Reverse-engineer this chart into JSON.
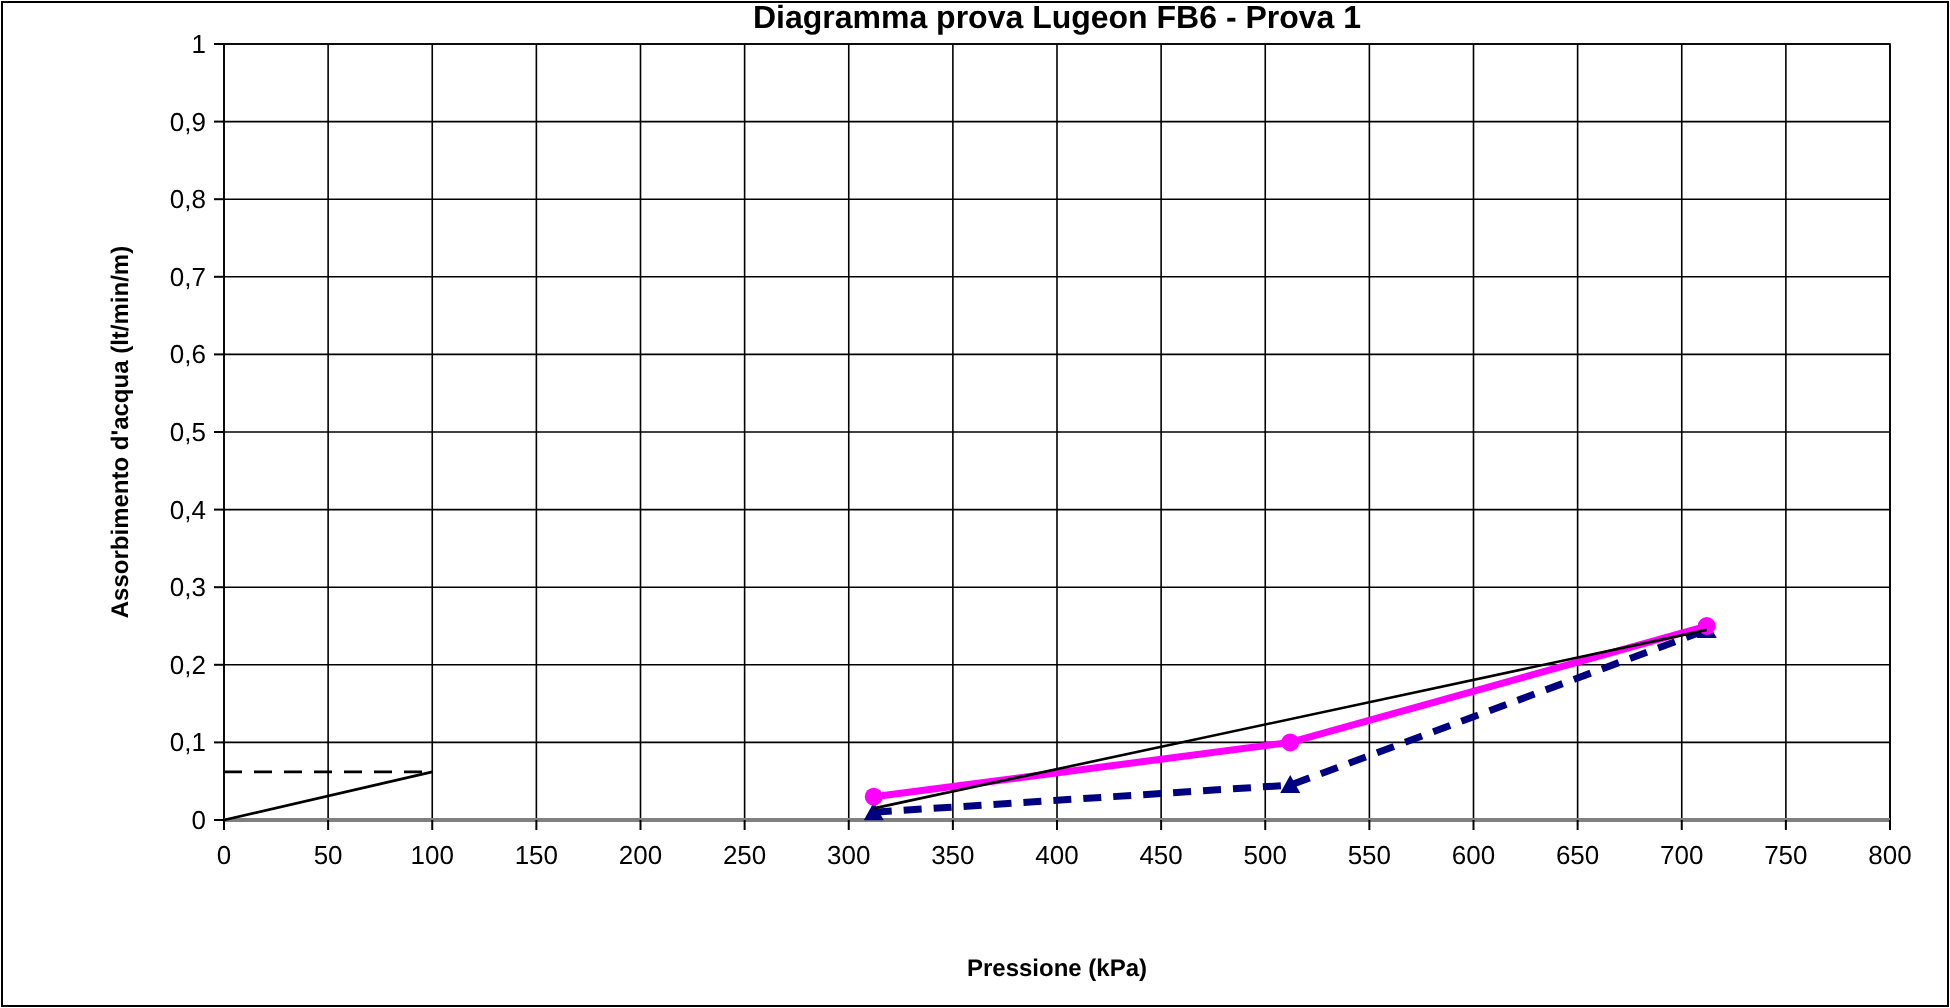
{
  "chart_data": {
    "type": "line",
    "title": "Diagramma prova Lugeon FB6 - Prova 1",
    "xlabel": "Pressione (kPa)",
    "ylabel": "Assorbimento d'acqua (lt/min/m)",
    "xlim": [
      0,
      800
    ],
    "xticks": [
      0,
      50,
      100,
      150,
      200,
      250,
      300,
      350,
      400,
      450,
      500,
      550,
      600,
      650,
      700,
      750,
      800
    ],
    "ylim": [
      0,
      1
    ],
    "yticks": [
      {
        "value": 0,
        "label": "0"
      },
      {
        "value": 0.1,
        "label": "0,1"
      },
      {
        "value": 0.2,
        "label": "0,2"
      },
      {
        "value": 0.3,
        "label": "0,3"
      },
      {
        "value": 0.4,
        "label": "0,4"
      },
      {
        "value": 0.5,
        "label": "0,5"
      },
      {
        "value": 0.6,
        "label": "0,6"
      },
      {
        "value": 0.7,
        "label": "0,7"
      },
      {
        "value": 0.8,
        "label": "0,8"
      },
      {
        "value": 0.9,
        "label": "0,9"
      },
      {
        "value": 1,
        "label": "1"
      }
    ],
    "grid": true,
    "series": [
      {
        "color": "#000000",
        "x": [
          312,
          712
        ],
        "values": [
          0.015,
          0.245
        ],
        "marker": "none",
        "line_style": "solid"
      },
      {
        "color": "#ff00ff",
        "x": [
          312,
          512,
          712
        ],
        "values": [
          0.03,
          0.1,
          0.25
        ],
        "marker": "circle",
        "line_style": "solid"
      },
      {
        "color": "#000080",
        "x": [
          312,
          512,
          712
        ],
        "values": [
          0.01,
          0.045,
          0.245
        ],
        "marker": "triangle",
        "line_style": "dashed"
      },
      {
        "color": "#000000",
        "x": [
          0,
          100
        ],
        "values": [
          0,
          0.062
        ],
        "marker": "none",
        "line_style": "solid"
      },
      {
        "color": "#000000",
        "x": [
          0,
          100
        ],
        "values": [
          0.062,
          0.062
        ],
        "marker": "none",
        "line_style": "dashed"
      }
    ]
  }
}
